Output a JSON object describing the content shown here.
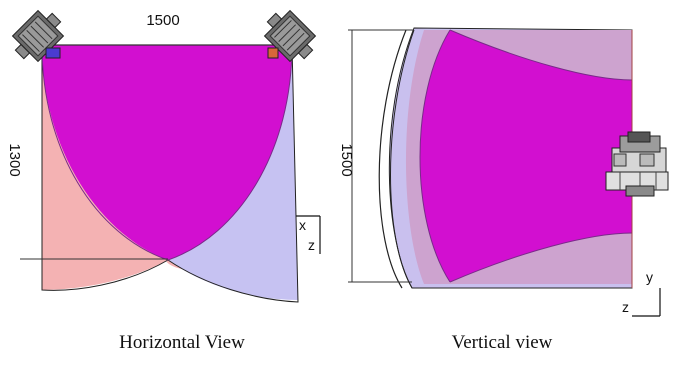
{
  "horizontal_view": {
    "caption": "Horizontal View",
    "width_label": "1500",
    "depth_label": "1300",
    "axis_x": "x",
    "axis_z": "z",
    "colors": {
      "overlap": "#d20fd0",
      "left_camera": "#f4b2b3",
      "right_camera": "#b9b5ef"
    }
  },
  "vertical_view": {
    "caption": "Vertical view",
    "height_label": "1500",
    "axis_y": "y",
    "axis_z": "z",
    "colors": {
      "overlap": "#d20fd0",
      "outer": "#c5a8d4",
      "edge": "#8fa3e8"
    }
  }
}
